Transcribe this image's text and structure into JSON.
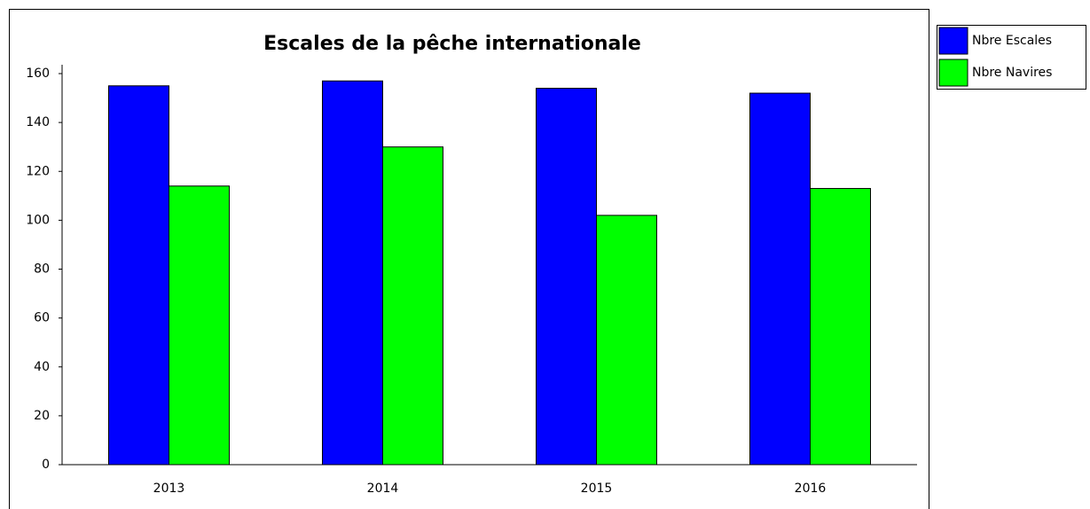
{
  "chart_data": {
    "type": "bar",
    "title": "Escales de la pêche internationale",
    "categories": [
      "2013",
      "2014",
      "2015",
      "2016"
    ],
    "series": [
      {
        "name": "Nbre Escales",
        "color": "#0000ff",
        "values": [
          155,
          157,
          154,
          152
        ]
      },
      {
        "name": "Nbre Navires",
        "color": "#00ff00",
        "values": [
          114,
          130,
          102,
          113
        ]
      }
    ],
    "ylim": [
      0,
      160
    ],
    "yticks": [
      0,
      20,
      40,
      60,
      80,
      100,
      120,
      140,
      160
    ],
    "grid": false,
    "legend": "right"
  }
}
